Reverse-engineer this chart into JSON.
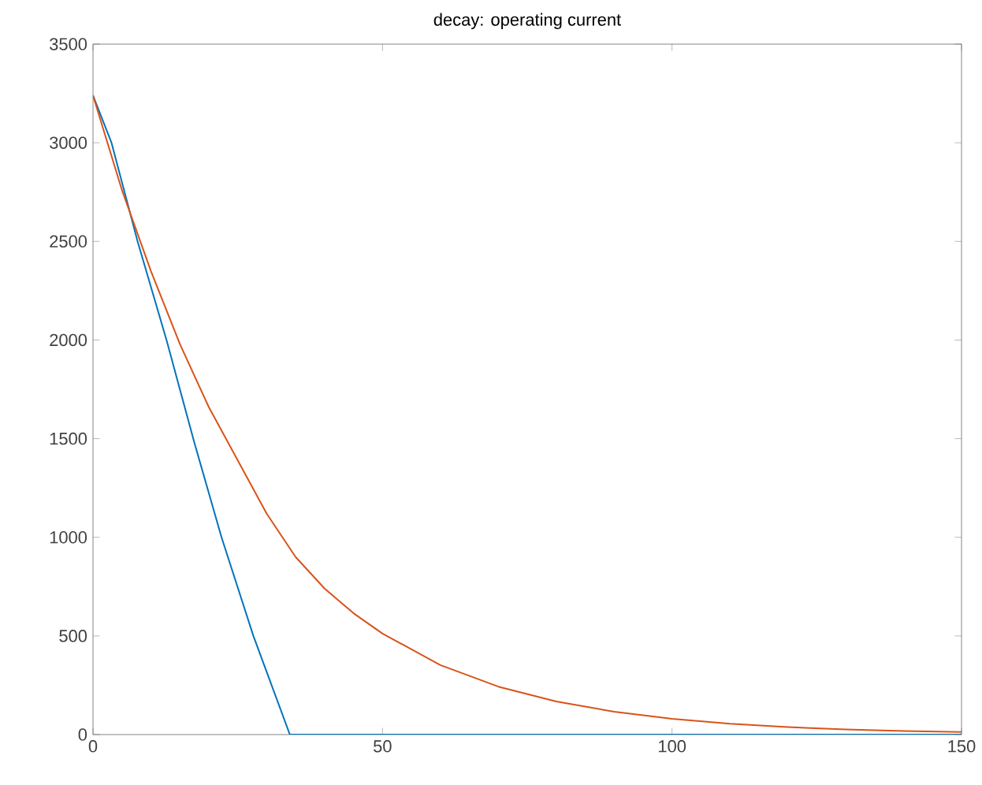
{
  "chart_data": {
    "type": "line",
    "title": "decay: operating current",
    "xlim": [
      0,
      150
    ],
    "xticks": [
      0,
      50,
      100,
      150
    ],
    "ylim": [
      0,
      3500
    ],
    "yticks": [
      0,
      500,
      1000,
      1500,
      2000,
      2500,
      3000,
      3500
    ],
    "series": [
      {
        "color": "#0072bd",
        "x": [
          0,
          3.2,
          7.7,
          12.7,
          17.5,
          22.2,
          27.7,
          34,
          150
        ],
        "values": [
          3240,
          3000,
          2500,
          2000,
          1480,
          1000,
          500,
          0,
          0
        ]
      },
      {
        "color": "#d95319",
        "x": [
          0,
          5,
          10,
          15,
          20,
          25,
          30,
          35,
          40,
          45,
          50,
          60,
          70,
          80,
          90,
          100,
          110,
          120,
          130,
          140,
          150
        ],
        "values": [
          3240,
          2760,
          2350,
          1980,
          1660,
          1390,
          1120,
          900,
          740,
          615,
          512,
          352,
          243,
          168,
          116,
          80,
          55,
          38,
          26,
          18,
          13
        ]
      }
    ]
  }
}
